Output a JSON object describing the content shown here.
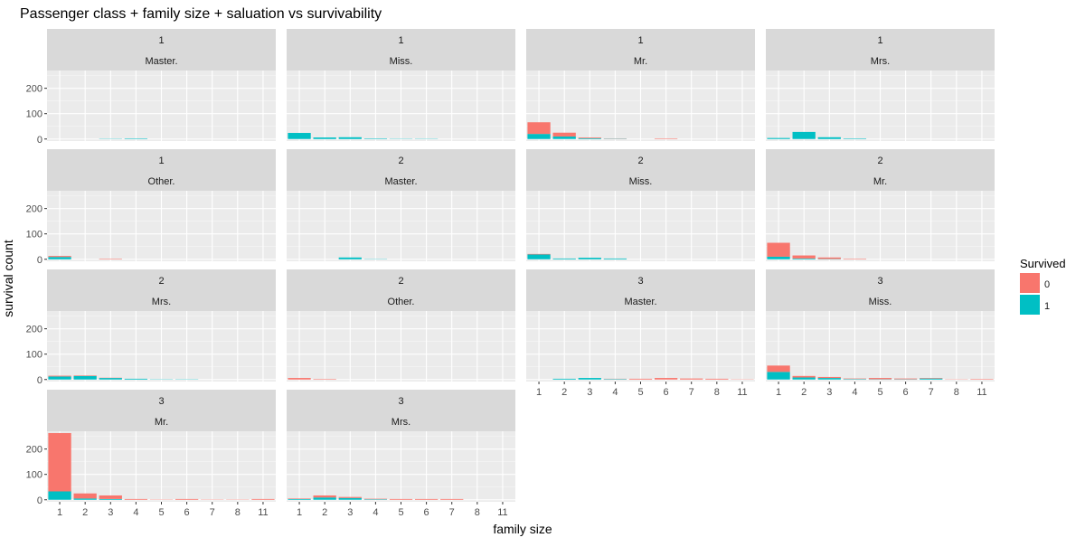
{
  "chart_data": {
    "type": "bar",
    "stacked": true,
    "faceted": true,
    "title": "Passenger class + family size + saluation vs survivability",
    "xlabel": "family size",
    "ylabel": "survival count",
    "categories": [
      "1",
      "2",
      "3",
      "4",
      "5",
      "6",
      "7",
      "8",
      "11"
    ],
    "yticks": [
      0,
      100,
      200
    ],
    "ylim": [
      -8,
      270
    ],
    "grid": true,
    "legend": {
      "title": "Survived",
      "position": "right",
      "entries": [
        {
          "label": "0",
          "color": "#F8766D"
        },
        {
          "label": "1",
          "color": "#00BFC4"
        }
      ]
    },
    "series_colors": {
      "died": "#F8766D",
      "survived": "#00BFC4"
    },
    "panels": [
      {
        "pclass": "1",
        "title": "Master.",
        "died": [
          0,
          0,
          0,
          0,
          0,
          0,
          0,
          0,
          0
        ],
        "survived": [
          0,
          0,
          1,
          2,
          0,
          0,
          0,
          0,
          0
        ]
      },
      {
        "pclass": "1",
        "title": "Miss.",
        "died": [
          0,
          0,
          0,
          0,
          0,
          0,
          0,
          0,
          0
        ],
        "survived": [
          24,
          6,
          7,
          2,
          1,
          1,
          0,
          0,
          0
        ]
      },
      {
        "pclass": "1",
        "title": "Mr.",
        "died": [
          46,
          15,
          3,
          1,
          0,
          2,
          0,
          0,
          0
        ],
        "survived": [
          20,
          10,
          3,
          1,
          0,
          0,
          0,
          0,
          0
        ]
      },
      {
        "pclass": "1",
        "title": "Mrs.",
        "died": [
          0,
          0,
          0,
          0,
          0,
          0,
          0,
          0,
          0
        ],
        "survived": [
          4,
          28,
          7,
          2,
          0,
          0,
          0,
          0,
          0
        ]
      },
      {
        "pclass": "1",
        "title": "Other.",
        "died": [
          4,
          0,
          2,
          0,
          0,
          0,
          0,
          0,
          0
        ],
        "survived": [
          9,
          0,
          0,
          0,
          0,
          0,
          0,
          0,
          0
        ]
      },
      {
        "pclass": "2",
        "title": "Master.",
        "died": [
          0,
          0,
          0,
          0,
          0,
          0,
          0,
          0,
          0
        ],
        "survived": [
          0,
          0,
          7,
          1,
          0,
          0,
          0,
          0,
          0
        ]
      },
      {
        "pclass": "2",
        "title": "Miss.",
        "died": [
          2,
          0,
          0,
          0,
          0,
          0,
          0,
          0,
          0
        ],
        "survived": [
          19,
          3,
          6,
          3,
          0,
          0,
          0,
          0,
          0
        ]
      },
      {
        "pclass": "2",
        "title": "Mr.",
        "died": [
          55,
          12,
          6,
          2,
          0,
          0,
          0,
          0,
          0
        ],
        "survived": [
          10,
          3,
          1,
          0,
          0,
          0,
          0,
          0,
          0
        ]
      },
      {
        "pclass": "2",
        "title": "Mrs.",
        "died": [
          3,
          2,
          1,
          0,
          0,
          0,
          0,
          0,
          0
        ],
        "survived": [
          12,
          14,
          6,
          3,
          1,
          1,
          0,
          0,
          0
        ]
      },
      {
        "pclass": "2",
        "title": "Other.",
        "died": [
          6,
          2,
          0,
          0,
          0,
          0,
          0,
          0,
          0
        ],
        "survived": [
          0,
          0,
          0,
          0,
          0,
          0,
          0,
          0,
          0
        ]
      },
      {
        "pclass": "3",
        "title": "Master.",
        "died": [
          0,
          0,
          0,
          1,
          3,
          6,
          4,
          3,
          1
        ],
        "survived": [
          0,
          3,
          6,
          2,
          0,
          0,
          0,
          0,
          0
        ]
      },
      {
        "pclass": "3",
        "title": "Miss.",
        "died": [
          25,
          6,
          4,
          2,
          5,
          3,
          2,
          1,
          2
        ],
        "survived": [
          30,
          8,
          6,
          2,
          1,
          1,
          4,
          0,
          0
        ]
      },
      {
        "pclass": "3",
        "title": "Mr.",
        "died": [
          230,
          20,
          14,
          3,
          1,
          3,
          1,
          1,
          3
        ],
        "survived": [
          33,
          5,
          3,
          0,
          0,
          0,
          0,
          0,
          0
        ]
      },
      {
        "pclass": "3",
        "title": "Mrs.",
        "died": [
          2,
          8,
          4,
          2,
          3,
          3,
          3,
          0,
          0
        ],
        "survived": [
          3,
          9,
          7,
          2,
          0,
          0,
          0,
          0,
          0
        ]
      }
    ]
  }
}
